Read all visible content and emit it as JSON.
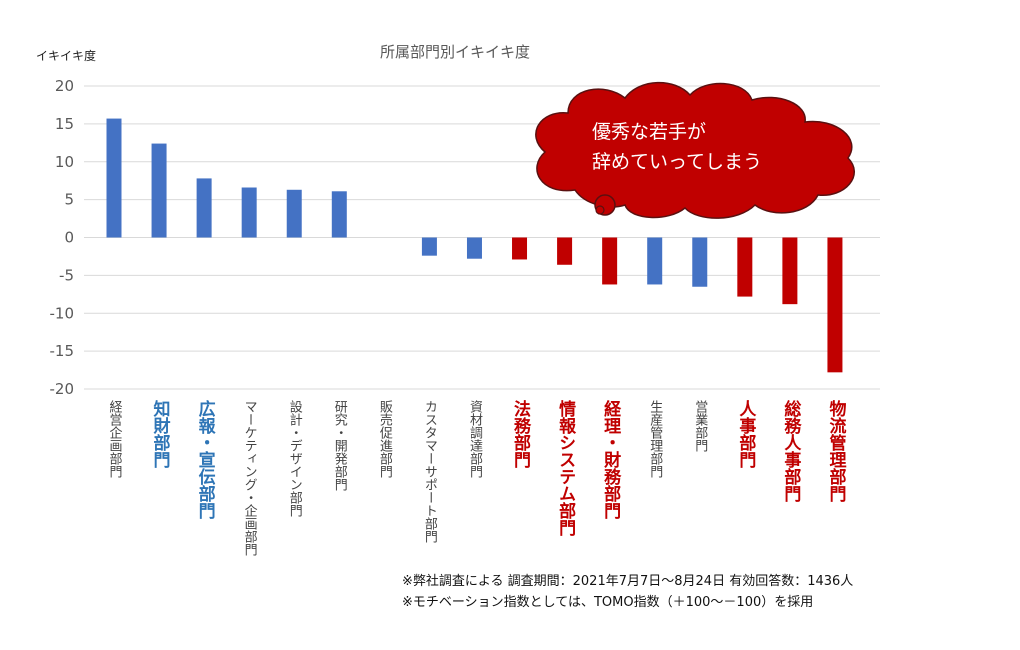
{
  "chart_data": {
    "type": "bar",
    "title": "所属部門別イキイキ度",
    "ylabel": "イキイキ度",
    "ylim": [
      -20,
      20
    ],
    "yticks": [
      20,
      15,
      10,
      5,
      0,
      -5,
      -10,
      -15,
      -20
    ],
    "categories": [
      {
        "label": "経営企画部門",
        "value": 15.7,
        "bar_color": "blue",
        "label_style": "small"
      },
      {
        "label": "知財部門",
        "value": 12.4,
        "bar_color": "blue",
        "label_style": "blue"
      },
      {
        "label": "広報・宣伝部門",
        "value": 7.8,
        "bar_color": "blue",
        "label_style": "blue"
      },
      {
        "label": "マーケティング・企画部門",
        "value": 6.6,
        "bar_color": "blue",
        "label_style": "small"
      },
      {
        "label": "設計・デザイン部門",
        "value": 6.3,
        "bar_color": "blue",
        "label_style": "small"
      },
      {
        "label": "研究・開発部門",
        "value": 6.1,
        "bar_color": "blue",
        "label_style": "small"
      },
      {
        "label": "販売促進部門",
        "value": 0,
        "bar_color": "blue",
        "label_style": "small"
      },
      {
        "label": "カスタマーサポート部門",
        "value": -2.4,
        "bar_color": "blue",
        "label_style": "small"
      },
      {
        "label": "資材調達部門",
        "value": -2.8,
        "bar_color": "blue",
        "label_style": "small"
      },
      {
        "label": "法務部門",
        "value": -2.9,
        "bar_color": "red",
        "label_style": "red"
      },
      {
        "label": "情報システム部門",
        "value": -3.6,
        "bar_color": "red",
        "label_style": "red"
      },
      {
        "label": "経理・財務部門",
        "value": -6.2,
        "bar_color": "red",
        "label_style": "red"
      },
      {
        "label": "生産管理部門",
        "value": -6.2,
        "bar_color": "blue",
        "label_style": "small"
      },
      {
        "label": "営業部門",
        "value": -6.5,
        "bar_color": "blue",
        "label_style": "small"
      },
      {
        "label": "人事部門",
        "value": -7.8,
        "bar_color": "red",
        "label_style": "red"
      },
      {
        "label": "総務人事部門",
        "value": -8.8,
        "bar_color": "red",
        "label_style": "red"
      },
      {
        "label": "物流管理部門",
        "value": -17.8,
        "bar_color": "red",
        "label_style": "red"
      }
    ],
    "grid": true,
    "legend": "none",
    "annotation": "優秀な若手が\n辞めていってしまう"
  },
  "colors": {
    "blue_bar": "#4472c4",
    "red_bar": "#c00000",
    "callout_fill": "#c00000",
    "callout_text": "#ffffff"
  },
  "footnotes": {
    "line1": "※弊社調査による  調査期間：2021年7月7日～8月24日  有効回答数：1436人",
    "line2": "※モチベーション指数としては、TOMO指数（＋100～－100）を採用"
  }
}
